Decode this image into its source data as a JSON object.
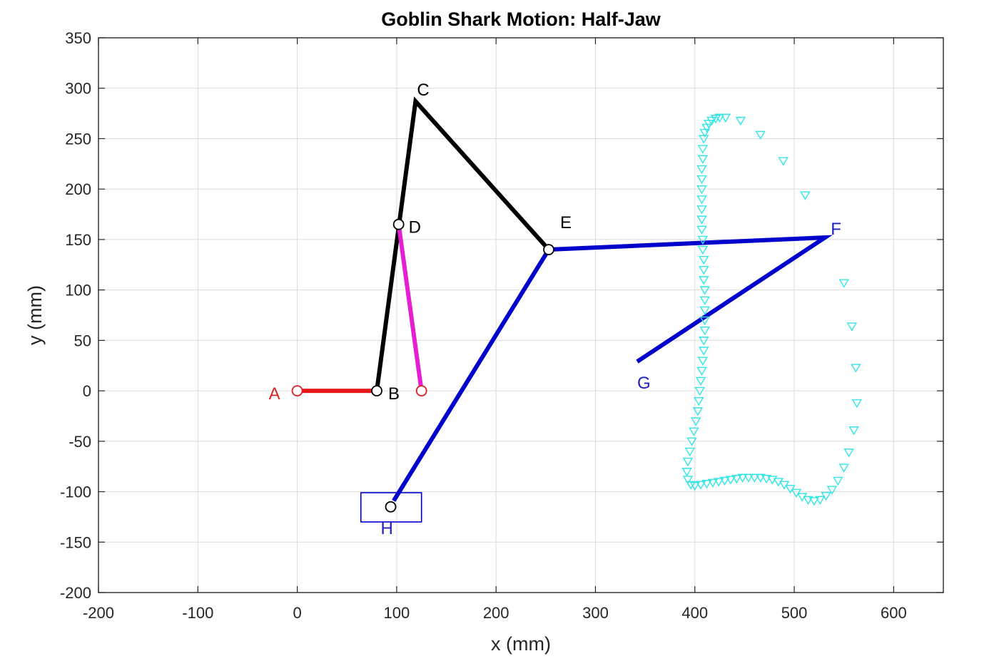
{
  "chart_data": {
    "type": "scatter",
    "title": "Goblin Shark Motion: Half-Jaw",
    "xlabel": "x (mm)",
    "ylabel": "y (mm)",
    "xlim": [
      -200,
      650
    ],
    "ylim": [
      -200,
      350
    ],
    "xticks": [
      -200,
      -100,
      0,
      100,
      200,
      300,
      400,
      500,
      600
    ],
    "yticks": [
      -200,
      -150,
      -100,
      -50,
      0,
      50,
      100,
      150,
      200,
      250,
      300,
      350
    ],
    "grid": true,
    "colors": {
      "link_red": "#e41a1c",
      "link_black": "#000000",
      "link_magenta": "#e61ed2",
      "link_blue": "#0000cd",
      "trace_cyan": "#33e5e5",
      "label_red": "#d62728",
      "label_blue": "#1f1fbf",
      "label_black": "#000000"
    },
    "joints": [
      {
        "label": "A",
        "x": 0,
        "y": 0,
        "color": "red",
        "marker": "circle"
      },
      {
        "label": "B",
        "x": 80,
        "y": 0,
        "color": "black",
        "marker": "circle"
      },
      {
        "label": "C",
        "x": 119,
        "y": 287,
        "color": "black",
        "marker": "none"
      },
      {
        "label": "D",
        "x": 102,
        "y": 165,
        "color": "black",
        "marker": "circle"
      },
      {
        "label": "E",
        "x": 253,
        "y": 140,
        "color": "black",
        "marker": "circle"
      },
      {
        "label": "F",
        "x": 531,
        "y": 152,
        "color": "blue",
        "marker": "none"
      },
      {
        "label": "G",
        "x": 342,
        "y": 29,
        "color": "blue",
        "marker": "none"
      },
      {
        "label": "H",
        "x": 94,
        "y": -115,
        "color": "blue",
        "marker": "circle"
      },
      {
        "label": "",
        "x": 125,
        "y": 0,
        "color": "red",
        "marker": "circle"
      }
    ],
    "links": [
      {
        "points": [
          [
            0,
            0
          ],
          [
            80,
            0
          ]
        ],
        "color": "link_red"
      },
      {
        "points": [
          [
            80,
            0
          ],
          [
            119,
            287
          ],
          [
            253,
            140
          ]
        ],
        "color": "link_black"
      },
      {
        "points": [
          [
            102,
            165
          ],
          [
            125,
            0
          ]
        ],
        "color": "link_magenta"
      },
      {
        "points": [
          [
            97,
            -109
          ],
          [
            253,
            140
          ],
          [
            531,
            152
          ],
          [
            342,
            29
          ]
        ],
        "color": "link_blue"
      }
    ],
    "slider_box": {
      "x": [
        64,
        125
      ],
      "y": [
        -130,
        -101
      ],
      "color": "link_blue"
    },
    "trace": {
      "marker": "triangle-down",
      "color": "trace_cyan",
      "x": [
        431,
        446,
        466,
        489,
        511,
        550,
        558,
        562,
        563,
        560,
        555,
        550,
        544,
        538,
        532,
        526,
        520,
        514,
        508,
        502,
        496,
        490,
        484,
        478,
        472,
        466,
        460,
        454,
        448,
        442,
        436,
        430,
        424,
        418,
        412,
        406,
        400,
        396,
        393,
        392,
        393,
        395,
        397,
        399,
        401,
        403,
        404,
        405,
        406,
        407,
        408,
        409,
        409,
        410,
        410,
        410,
        410,
        410,
        409,
        409,
        409,
        408,
        408,
        407,
        407,
        407,
        407,
        407,
        407,
        407,
        408,
        408,
        409,
        410,
        412,
        414,
        417,
        421,
        425
      ],
      "y": [
        271,
        268,
        254,
        228,
        194,
        107,
        64,
        23,
        -12,
        -39,
        -61,
        -76,
        -89,
        -98,
        -104,
        -108,
        -109,
        -108,
        -105,
        -101,
        -97,
        -93,
        -90,
        -88,
        -87,
        -86,
        -86,
        -86,
        -86,
        -87,
        -88,
        -89,
        -90,
        -91,
        -92,
        -93,
        -94,
        -93,
        -88,
        -80,
        -70,
        -60,
        -50,
        -40,
        -30,
        -20,
        -10,
        0,
        10,
        20,
        30,
        40,
        50,
        60,
        70,
        80,
        90,
        100,
        110,
        120,
        130,
        140,
        150,
        160,
        170,
        180,
        190,
        200,
        210,
        220,
        230,
        240,
        250,
        256,
        261,
        265,
        268,
        270,
        271
      ]
    }
  }
}
